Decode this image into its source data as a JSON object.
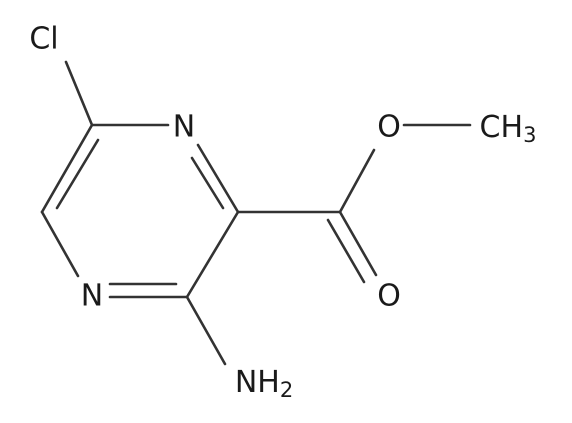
{
  "atoms": [
    {
      "label": "Cl"
    },
    {
      "label": "N"
    },
    {
      "label": "N"
    },
    {
      "label": "O"
    },
    {
      "label": "O"
    },
    {
      "label": "CH",
      "subscript": "3"
    },
    {
      "label": "NH",
      "subscript": "2"
    }
  ]
}
